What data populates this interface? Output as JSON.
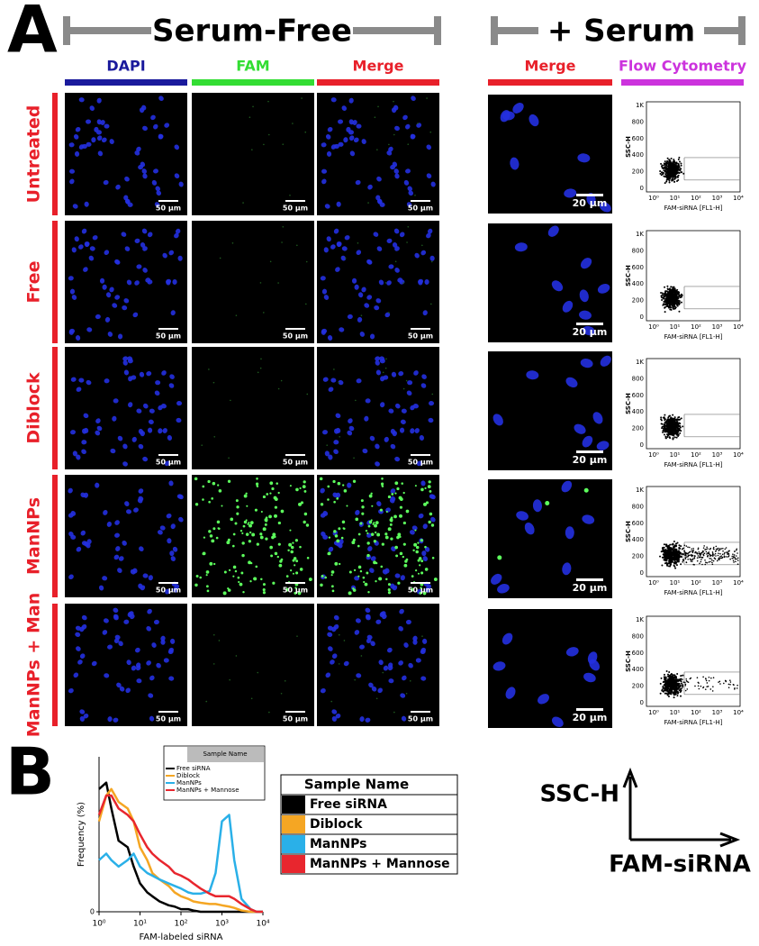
{
  "figure": {
    "panel_a_label": "A",
    "serum_free": "Serum-Free",
    "plus_serum": "+ Serum",
    "columns": [
      "DAPI",
      "FAM",
      "Merge",
      "Merge",
      "Flow Cytometry"
    ],
    "rows": [
      "Untreated",
      "Free",
      "Diblock",
      "ManNPs",
      "ManNPs + Man"
    ],
    "scale_bar_small": "50 µm",
    "scale_bar_large": "20 µm",
    "flow": {
      "y_label": "SSC-H",
      "x_label": "FAM-siRNA [FL1-H]",
      "yticks": [
        "1K",
        "800",
        "600",
        "400",
        "200",
        "0"
      ],
      "xticks": [
        "10⁰",
        "10¹",
        "10²",
        "10³",
        "10⁴"
      ]
    },
    "panel_b_label": "B",
    "key_y": "SSC-H",
    "key_x": "FAM-siRNA"
  },
  "chart_data": {
    "type": "line",
    "x_label": "FAM-labeled siRNA",
    "y_label": "Frequency (%)",
    "legend_title": "Sample Name",
    "log_x": true,
    "x": [
      1,
      1.5,
      2,
      3,
      5,
      7,
      10,
      15,
      20,
      30,
      50,
      70,
      100,
      150,
      200,
      300,
      500,
      700,
      1000,
      1500,
      2000,
      3000,
      5000,
      7000,
      10000
    ],
    "xlim": [
      1,
      10000
    ],
    "xticks": [
      {
        "value": 1,
        "label": "10⁰"
      },
      {
        "value": 10,
        "label": "10¹"
      },
      {
        "value": 100,
        "label": "10²"
      },
      {
        "value": 1000,
        "label": "10³"
      },
      {
        "value": 10000,
        "label": "10⁴"
      }
    ],
    "ylim": [
      0,
      120
    ],
    "yticks": [
      0
    ],
    "series": [
      {
        "name": "Free siRNA",
        "color": "#000000",
        "values": [
          95,
          100,
          80,
          55,
          50,
          35,
          22,
          15,
          12,
          8,
          5,
          4,
          2,
          2,
          1,
          0,
          0,
          0,
          0,
          0,
          0,
          0,
          0,
          0,
          0
        ]
      },
      {
        "name": "Diblock",
        "color": "#f5a623",
        "values": [
          70,
          90,
          95,
          85,
          80,
          70,
          50,
          40,
          30,
          25,
          20,
          15,
          12,
          10,
          8,
          7,
          6,
          6,
          5,
          4,
          3,
          1,
          0,
          0,
          0
        ]
      },
      {
        "name": "ManNPs",
        "color": "#2ab0e8",
        "values": [
          40,
          45,
          40,
          35,
          40,
          45,
          35,
          30,
          28,
          25,
          22,
          20,
          18,
          15,
          14,
          14,
          16,
          30,
          70,
          75,
          40,
          10,
          2,
          0,
          0
        ]
      },
      {
        "name": "ManNPs + Mannose",
        "color": "#e8262e",
        "values": [
          75,
          90,
          90,
          80,
          75,
          70,
          60,
          50,
          45,
          40,
          35,
          30,
          28,
          25,
          22,
          18,
          14,
          12,
          12,
          12,
          10,
          6,
          2,
          0,
          0
        ]
      }
    ]
  }
}
